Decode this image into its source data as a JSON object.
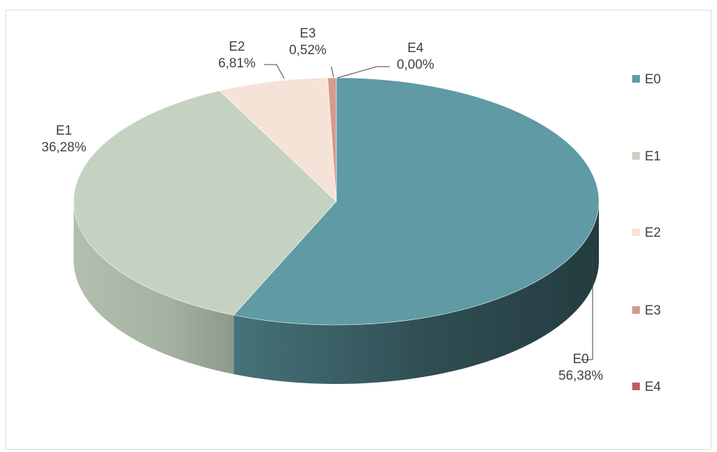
{
  "chart_data": {
    "type": "pie",
    "style": "3d",
    "categories": [
      "E0",
      "E1",
      "E2",
      "E3",
      "E4"
    ],
    "values": [
      56.38,
      36.28,
      6.81,
      0.52,
      0.0
    ],
    "data_labels": [
      "56,38%",
      "36,28%",
      "6,81%",
      "0,52%",
      "0,00%"
    ],
    "colors": [
      "#5f9aa5",
      "#c5d2c2",
      "#f6e3d8",
      "#d59a8e",
      "#bf5a6a"
    ],
    "legend": {
      "position": "right",
      "entries": [
        "E0",
        "E1",
        "E2",
        "E3",
        "E4"
      ]
    }
  }
}
